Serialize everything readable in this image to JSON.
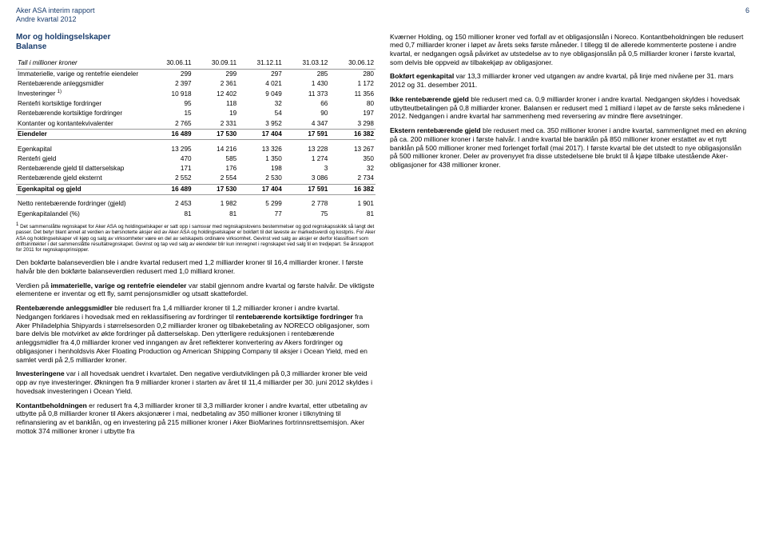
{
  "header": {
    "line1": "Aker ASA interim rapport",
    "line2": "Andre kvartal 2012",
    "pageNum": "6"
  },
  "balanceSheet": {
    "title": "Mor og holdingselskaper",
    "subtitle": "Balanse",
    "caption": "Tall i millioner kroner",
    "columns": [
      "30.06.11",
      "30.09.11",
      "31.12.11",
      "31.03.12",
      "30.06.12"
    ],
    "rows1": [
      {
        "label": "Immaterielle, varige og rentefrie eiendeler",
        "v": [
          "299",
          "299",
          "297",
          "285",
          "280"
        ]
      },
      {
        "label": "Rentebærende anleggsmidler",
        "v": [
          "2 397",
          "2 361",
          "4 021",
          "1 430",
          "1 172"
        ]
      },
      {
        "label": "Investeringer ",
        "sup": "1)",
        "v": [
          "10 918",
          "12 402",
          "9 049",
          "11 373",
          "11 356"
        ]
      },
      {
        "label": "Rentefri kortsiktige fordringer",
        "v": [
          "95",
          "118",
          "32",
          "66",
          "80"
        ]
      },
      {
        "label": "Rentebærende kortsiktige fordringer",
        "v": [
          "15",
          "19",
          "54",
          "90",
          "197"
        ]
      },
      {
        "label": "Kontanter og kontantekvivalenter",
        "v": [
          "2 765",
          "2 331",
          "3 952",
          "4 347",
          "3 298"
        ]
      }
    ],
    "total1": {
      "label": "Eiendeler",
      "v": [
        "16 489",
        "17 530",
        "17 404",
        "17 591",
        "16 382"
      ]
    },
    "rows2": [
      {
        "label": "Egenkapital",
        "v": [
          "13 295",
          "14 216",
          "13 326",
          "13 228",
          "13 267"
        ]
      },
      {
        "label": "Rentefri gjeld",
        "v": [
          "470",
          "585",
          "1 350",
          "1 274",
          "350"
        ]
      },
      {
        "label": "Rentebærende gjeld til datterselskap",
        "v": [
          "171",
          "176",
          "198",
          "3",
          "32"
        ]
      },
      {
        "label": "Rentebærende gjeld eksternt",
        "v": [
          "2 552",
          "2 554",
          "2 530",
          "3 086",
          "2 734"
        ]
      }
    ],
    "total2": {
      "label": "Egenkapital og gjeld",
      "v": [
        "16 489",
        "17 530",
        "17 404",
        "17 591",
        "16 382"
      ]
    },
    "rows3": [
      {
        "label": "Netto rentebærende fordringer (gjeld)",
        "v": [
          "2 453",
          "1 982",
          "5 299",
          "2 778",
          "1 901"
        ]
      },
      {
        "label": "Egenkapitalandel (%)",
        "v": [
          "81",
          "81",
          "77",
          "75",
          "81"
        ]
      }
    ],
    "footnote": "1 Det sammenslåtte regnskapet for Aker ASA og holdingselskaper er satt opp i samsvar med regnskapslovens bestemmelser og god regnskapsskikk så langt det passer. Det betyr blant annet at verdien av børsnoterte aksjer eid av Aker ASA og holdingselskaper er bokført til det laveste av markedsverdi og kostpris. For Aker ASA og holdingselskaper vil kjøp og salg av virksomheter være en del av selskapets ordinære virksomhet. Gevinst ved salg av aksjer er derfor klassifisert som driftsinntekter i det sammenslåtte resultatregnskapet. Gevinst og tap ved salg av eiendeler blir kun innregnet i regnskapet ved salg til en tredjepart. Se årsrapport for 2011 for regnskapsprinsipper."
  },
  "leftParas": [
    "Den bokførte balanseverdien ble i andre kvartal redusert med 1,2 milliarder kroner til 16,4 milliarder kroner. I første halvår ble den bokførte balanseverdien redusert med 1,0 milliard kroner.",
    "Verdien på <b>immaterielle, varige og rentefrie eiendeler</b> var stabil gjennom andre kvartal og første halvår. De viktigste elementene er inventar og ett fly, samt pensjonsmidler og utsatt skattefordel.",
    "<b>Rentebærende anleggsmidler</b> ble redusert fra 1,4 milliarder kroner til 1,2 milliarder kroner i andre kvartal. Nedgangen forklares i hovedsak med en reklassifisering av fordringer til <b>rentebærende kortsiktige fordringer</b> fra Aker Philadelphia Shipyards i størrelsesorden 0,2 milliarder kroner og tilbakebetaling av NORECO obligasjoner, som bare delvis ble motvirket av økte fordringer på datterselskap. Den ytterligere reduksjonen i rentebærende anleggsmidler fra 4,0 milliarder kroner ved inngangen av året reflekterer konvertering av Akers fordringer og obligasjoner i henholdsvis Aker Floating Production og American Shipping Company til aksjer i Ocean Yield, med en samlet verdi på 2,5 milliarder kroner.",
    "<b>Investeringene</b> var i all hovedsak uendret i kvartalet. Den negative verdiutviklingen på 0,3 milliarder kroner ble veid opp av nye investeringer. Økningen fra 9 milliarder kroner i starten av året til 11,4 milliarder per 30. juni 2012 skyldes i hovedsak investeringen i Ocean Yield.",
    "<b>Kontantbeholdningen</b> er redusert fra 4,3 milliarder kroner til 3,3 milliarder kroner i andre kvartal, etter utbetaling av utbytte på 0,8 milliarder kroner til Akers aksjonærer i mai, nedbetaling av 350 millioner kroner i tilknytning til refinansiering av et banklån, og en investering på 215 millioner kroner i Aker BioMarines fortrinnsrettsemisjon. Aker mottok 374 millioner kroner i utbytte fra"
  ],
  "rightParas": [
    "Kværner Holding, og 150 millioner kroner ved forfall av et obligasjonslån i Noreco. Kontantbeholdningen ble redusert med 0,7 milliarder kroner i løpet av årets seks første måneder. I tillegg til de allerede kommenterte postene i andre kvartal, er nedgangen også påvirket av utstedelse av to nye obligasjonslån på 0,5 milliarder kroner i første kvartal, som delvis ble oppveid av tilbakekjøp av obligasjoner.",
    "<b>Bokført egenkapital</b> var 13,3 milliarder kroner ved utgangen av andre kvartal, på linje med nivåene per 31. mars 2012 og 31. desember 2011.",
    "<b>Ikke rentebærende gjeld</b> ble redusert med ca. 0,9 milliarder kroner i andre kvartal. Nedgangen skyldes i hovedsak utbytteutbetalingen på 0,8 milliarder kroner. Balansen er redusert med 1 milliard i løpet av de første seks månedene i 2012. Nedgangen i andre kvartal har sammenheng med reversering av mindre flere avsetninger.",
    "<b>Ekstern rentebærende gjeld</b> ble redusert med ca. 350 millioner kroner i andre kvartal, sammenlignet med en økning på ca. 200 millioner kroner i første halvår. I andre kvartal ble banklån på 850 millioner kroner erstattet av et nytt banklån på 500 millioner kroner med forlenget forfall (mai 2017). I første kvartal ble det utstedt to nye obligasjonslån på 500 millioner kroner. Deler av provenyyet fra disse utstedelsene ble brukt til å kjøpe tilbake utestående Aker-obligasjoner for 438 millioner kroner."
  ]
}
